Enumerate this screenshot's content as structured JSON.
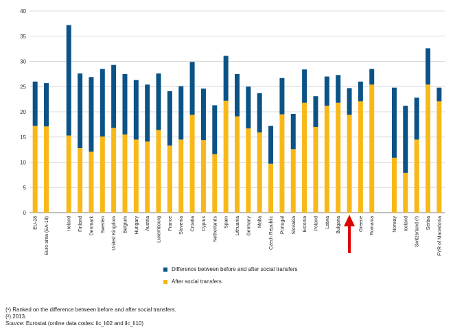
{
  "chart_data": {
    "type": "bar",
    "stacked": true,
    "title": "",
    "xlabel": "",
    "ylabel": "",
    "ylim": [
      0,
      40
    ],
    "yticks": [
      0,
      5,
      10,
      15,
      20,
      25,
      30,
      35,
      40
    ],
    "grid": true,
    "categories": [
      "EU-28",
      "Euro area (EA-18)",
      "",
      "Ireland",
      "Finland",
      "Denmark",
      "Sweden",
      "United Kingdom",
      "Belgium",
      "Hungary",
      "Austria",
      "Luxembourg",
      "France",
      "Slovenia",
      "Croatia",
      "Cyprus",
      "Netherlands",
      "Spain",
      "Lithuania",
      "Germany",
      "Malta",
      "Czech Republic",
      "Portugal",
      "Slovakia",
      "Estonia",
      "Poland",
      "Latvia",
      "Bulgaria",
      "",
      "Greece",
      "Romania",
      "",
      "Norway",
      "Iceland",
      "Switzerland (²)",
      "Serbia",
      "FYR of Macedonia"
    ],
    "series": [
      {
        "name": "After social transfers",
        "color": "#F7B818",
        "values": [
          17.2,
          17.1,
          null,
          15.3,
          12.8,
          12.1,
          15.1,
          16.8,
          15.5,
          14.5,
          14.1,
          16.4,
          13.3,
          14.5,
          19.4,
          14.4,
          11.6,
          22.2,
          19.1,
          16.7,
          15.9,
          9.7,
          19.5,
          12.6,
          21.8,
          17.0,
          21.2,
          21.8,
          19.4,
          22.1,
          25.4,
          null,
          10.9,
          7.9,
          14.5,
          25.4,
          22.1
        ]
      },
      {
        "name": "Difference between before and after social transfers",
        "color": "#0B5386",
        "values": [
          8.8,
          8.6,
          null,
          21.9,
          14.8,
          14.8,
          13.4,
          12.5,
          12.0,
          11.8,
          11.3,
          11.2,
          10.8,
          10.6,
          10.5,
          10.2,
          9.7,
          8.9,
          8.4,
          8.3,
          7.8,
          7.5,
          7.2,
          7.0,
          6.6,
          6.1,
          5.8,
          5.5,
          5.3,
          3.9,
          3.1,
          null,
          13.9,
          13.3,
          8.3,
          7.2,
          2.7
        ]
      }
    ],
    "annotation": "red arrow"
  },
  "legend": [
    {
      "label": "Difference between before and after social transfers",
      "color": "#0B5386"
    },
    {
      "label": "After social transfers",
      "color": "#F7B818"
    }
  ],
  "notes": {
    "note1": "(¹) Ranked on the difference between before and after social transfers.",
    "note2": "(²) 2013.",
    "source_label": "Source:",
    "source_text": "Eurostat (online data codes: ilc_li02 and ilc_li10)"
  },
  "colors": {
    "arrow": "#E00000",
    "grid": "#D9D9D9",
    "axis": "#7F7F7F"
  }
}
